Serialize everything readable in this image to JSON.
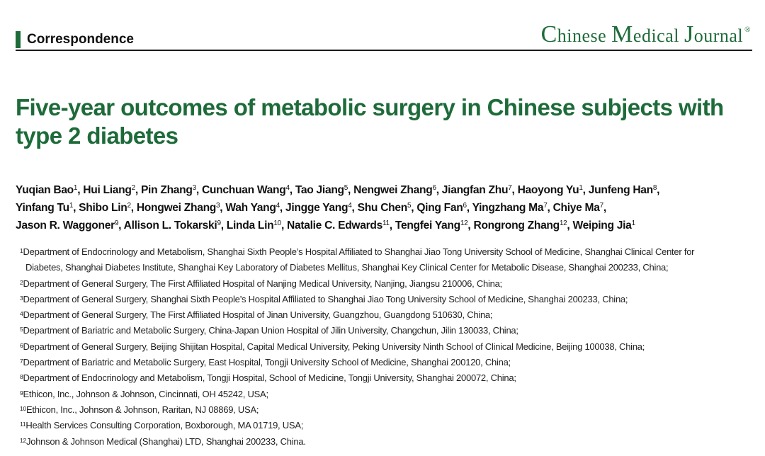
{
  "header": {
    "section": "Correspondence",
    "journal_c": "C",
    "journal_hinese": "hinese ",
    "journal_m": "M",
    "journal_edical": "edical ",
    "journal_j": "J",
    "journal_ournal": "ournal",
    "journal_reg": "®"
  },
  "title": "Five-year outcomes of metabolic surgery in Chinese subjects with type 2 diabetes",
  "authors": [
    {
      "name": "Yuqian Bao",
      "aff": "1"
    },
    {
      "name": "Hui Liang",
      "aff": "2"
    },
    {
      "name": "Pin Zhang",
      "aff": "3"
    },
    {
      "name": "Cunchuan Wang",
      "aff": "4"
    },
    {
      "name": "Tao Jiang",
      "aff": "5"
    },
    {
      "name": "Nengwei Zhang",
      "aff": "6"
    },
    {
      "name": "Jiangfan Zhu",
      "aff": "7"
    },
    {
      "name": "Haoyong Yu",
      "aff": "1"
    },
    {
      "name": "Junfeng Han",
      "aff": "8"
    },
    {
      "name": "Yinfang Tu",
      "aff": "1"
    },
    {
      "name": "Shibo Lin",
      "aff": "2"
    },
    {
      "name": "Hongwei Zhang",
      "aff": "3"
    },
    {
      "name": "Wah Yang",
      "aff": "4"
    },
    {
      "name": "Jingge Yang",
      "aff": "4"
    },
    {
      "name": "Shu Chen",
      "aff": "5"
    },
    {
      "name": "Qing Fan",
      "aff": "6"
    },
    {
      "name": "Yingzhang Ma",
      "aff": "7"
    },
    {
      "name": "Chiye Ma",
      "aff": "7"
    },
    {
      "name": "Jason R. Waggoner",
      "aff": "9"
    },
    {
      "name": "Allison L. Tokarski",
      "aff": "9"
    },
    {
      "name": "Linda Lin",
      "aff": "10"
    },
    {
      "name": "Natalie C. Edwards",
      "aff": "11"
    },
    {
      "name": "Tengfei Yang",
      "aff": "12"
    },
    {
      "name": "Rongrong Zhang",
      "aff": "12"
    },
    {
      "name": "Weiping Jia",
      "aff": "1"
    }
  ],
  "affiliations": [
    {
      "num": "1",
      "text": "Department of Endocrinology and Metabolism, Shanghai Sixth People’s Hospital Affiliated to Shanghai Jiao Tong University School of Medicine, Shanghai Clinical Center for",
      "cont": "Diabetes, Shanghai Diabetes Institute, Shanghai Key Laboratory of Diabetes Mellitus, Shanghai Key Clinical Center for Metabolic Disease, Shanghai 200233, China;"
    },
    {
      "num": "2",
      "text": "Department of General Surgery, The First Affiliated Hospital of Nanjing Medical University, Nanjing, Jiangsu 210006, China;"
    },
    {
      "num": "3",
      "text": "Department of General Surgery, Shanghai Sixth People’s Hospital Affiliated to Shanghai Jiao Tong University School of Medicine, Shanghai 200233, China;"
    },
    {
      "num": "4",
      "text": "Department of General Surgery, The First Affiliated Hospital of Jinan University, Guangzhou, Guangdong 510630, China;"
    },
    {
      "num": "5",
      "text": "Department of Bariatric and Metabolic Surgery, China-Japan Union Hospital of Jilin University, Changchun, Jilin 130033, China;"
    },
    {
      "num": "6",
      "text": "Department of General Surgery, Beijing Shijitan Hospital, Capital Medical University, Peking University Ninth School of Clinical Medicine, Beijing 100038, China;"
    },
    {
      "num": "7",
      "text": "Department of Bariatric and Metabolic Surgery, East Hospital, Tongji University School of Medicine, Shanghai 200120, China;"
    },
    {
      "num": "8",
      "text": "Department of Endocrinology and Metabolism, Tongji Hospital, School of Medicine, Tongji University, Shanghai 200072, China;"
    },
    {
      "num": "9",
      "text": "Ethicon, Inc., Johnson & Johnson, Cincinnati, OH 45242, USA;"
    },
    {
      "num": "10",
      "text": "Ethicon, Inc., Johnson & Johnson, Raritan, NJ 08869, USA;"
    },
    {
      "num": "11",
      "text": "Health Services Consulting Corporation, Boxborough, MA 01719, USA;"
    },
    {
      "num": "12",
      "text": "Johnson & Johnson Medical (Shanghai) LTD, Shanghai 200233, China."
    }
  ],
  "colors": {
    "accent": "#1e6b3a",
    "rule": "#1a1a1a"
  }
}
